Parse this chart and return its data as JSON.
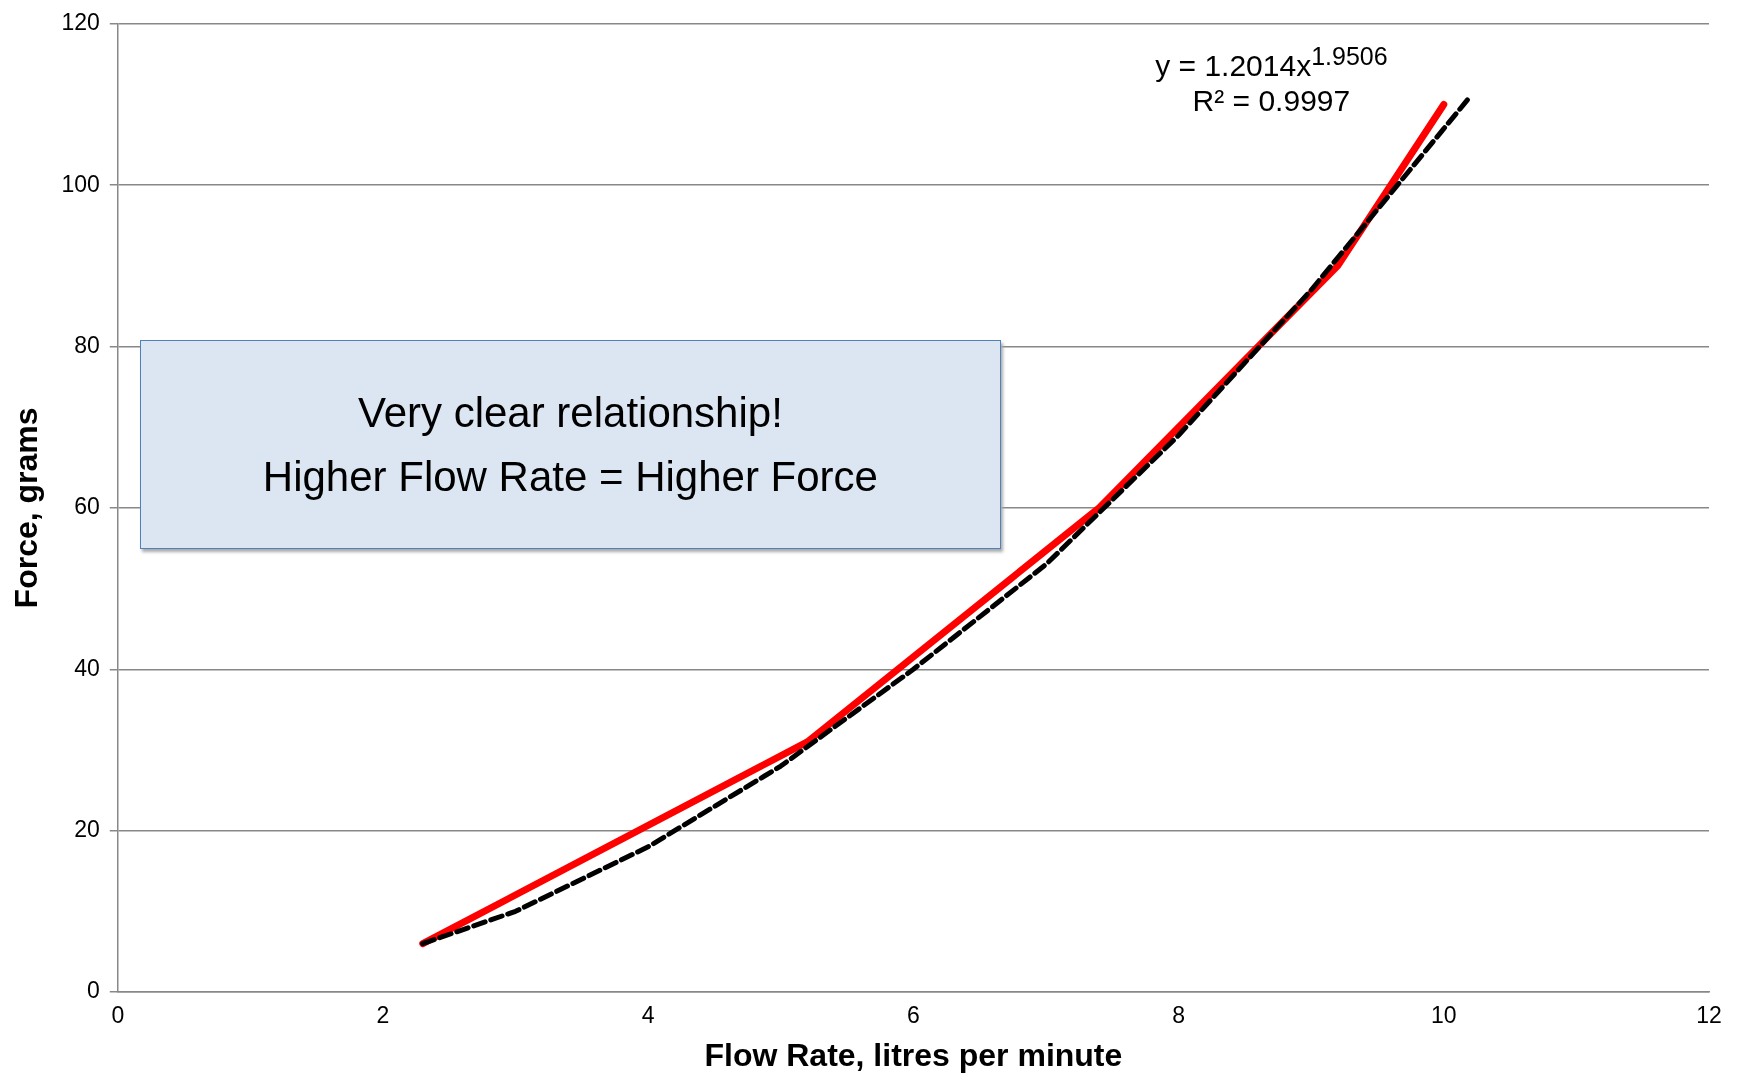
{
  "chart_data": {
    "type": "line",
    "xlabel": "Flow Rate, litres per minute",
    "ylabel": "Force, grams",
    "xlim": [
      0,
      12
    ],
    "xticks": [
      0,
      2,
      4,
      6,
      8,
      10,
      12
    ],
    "ylim": [
      0,
      120
    ],
    "yticks": [
      0,
      20,
      40,
      60,
      80,
      100,
      120
    ],
    "grid": "y",
    "legend": false,
    "marker": "none",
    "series": [
      {
        "color": "#ff0000",
        "line_style": "solid",
        "x": [
          2.3,
          5.2,
          7.4,
          9.2,
          10.0
        ],
        "values": [
          6,
          31,
          60,
          90,
          110
        ]
      },
      {
        "color": "#000000",
        "line_style": "dashed",
        "x": [
          2.3,
          3,
          4,
          5,
          6,
          7,
          8,
          9,
          10,
          10.2
        ],
        "values": [
          6,
          10,
          18,
          28,
          40,
          53,
          69,
          87,
          107,
          111
        ]
      }
    ],
    "annotations": [
      "Very clear relationship!\nHigher Flow Rate = Higher Force",
      "y = 1.2014x$^{1.9506}$",
      "R² = 0.9997"
    ]
  }
}
